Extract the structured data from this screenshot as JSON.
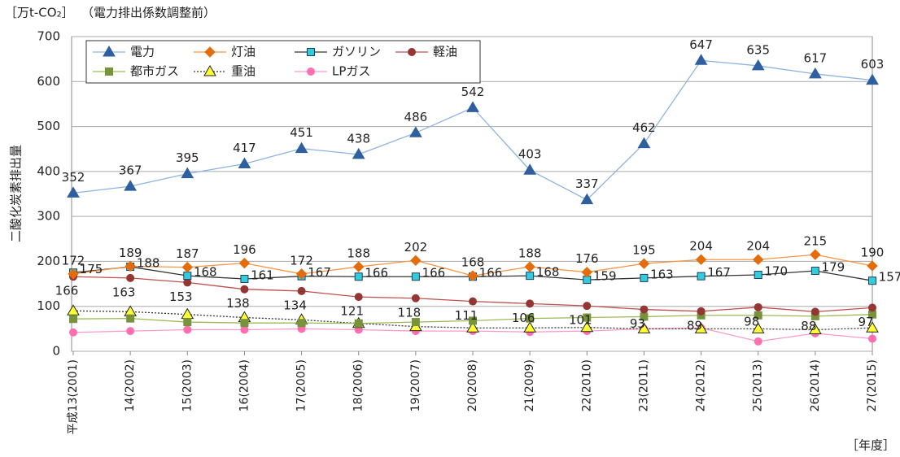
{
  "chart_data": {
    "type": "line",
    "unit_label": "［万t-CO₂］",
    "subtitle": "（電力排出係数調整前）",
    "y_label": "二酸化炭素排出量",
    "x_label": "［年度］",
    "categories": [
      "平成13(2001)",
      "14(2002)",
      "15(2003)",
      "16(2004)",
      "17(2005)",
      "18(2006)",
      "19(2007)",
      "20(2008)",
      "21(2009)",
      "22(2010)",
      "23(2011)",
      "24(2012)",
      "25(2013)",
      "26(2014)",
      "27(2015)"
    ],
    "ylim": [
      0,
      700
    ],
    "yticks": [
      0,
      100,
      200,
      300,
      400,
      500,
      600,
      700
    ],
    "grid": true,
    "series": [
      {
        "name": "電力",
        "color": "#8db3e2",
        "marker": "triangle",
        "marker_color": "#2f5f9e",
        "marker_stroke": "#2f5f9e",
        "label_color": "#1f497d",
        "values": [
          352,
          367,
          395,
          417,
          451,
          438,
          486,
          542,
          403,
          337,
          462,
          647,
          635,
          617,
          603
        ]
      },
      {
        "name": "灯油",
        "color": "#f79646",
        "marker": "diamond",
        "marker_color": "#e46c0a",
        "marker_stroke": "#e46c0a",
        "label_color": "#e46c0a",
        "values": [
          172,
          189,
          187,
          196,
          172,
          188,
          202,
          168,
          188,
          176,
          195,
          204,
          204,
          215,
          190
        ]
      },
      {
        "name": "ガソリン",
        "color": "#333333",
        "marker": "square",
        "marker_color": "#33ccdd",
        "marker_stroke": "#1f3f5f",
        "label_color": "#111111",
        "values": [
          175,
          188,
          168,
          161,
          167,
          166,
          166,
          166,
          168,
          159,
          163,
          167,
          170,
          179,
          157
        ]
      },
      {
        "name": "軽油",
        "color": "#c0504d",
        "marker": "circle",
        "marker_color": "#943634",
        "marker_stroke": "#943634",
        "label_color": "#943634",
        "values": [
          166,
          163,
          153,
          138,
          134,
          121,
          118,
          111,
          106,
          101,
          93,
          89,
          98,
          88,
          97
        ]
      },
      {
        "name": "都市ガス",
        "color": "#9bbb59",
        "marker": "square",
        "marker_color": "#77933c",
        "marker_stroke": "#77933c",
        "values": [
          72,
          73,
          65,
          63,
          63,
          62,
          65,
          68,
          73,
          75,
          77,
          80,
          80,
          78,
          82
        ]
      },
      {
        "name": "重油",
        "color": "#333333",
        "line_style": "dotted",
        "marker": "triangle",
        "marker_color": "#ffff33",
        "marker_stroke": "#222222",
        "values": [
          90,
          88,
          82,
          75,
          70,
          62,
          55,
          52,
          52,
          53,
          50,
          50,
          50,
          48,
          52
        ]
      },
      {
        "name": "LPガス",
        "color": "#ff99cc",
        "marker": "circle",
        "marker_color": "#ff6fb0",
        "marker_stroke": "#ff6fb0",
        "values": [
          42,
          45,
          48,
          48,
          50,
          48,
          45,
          45,
          43,
          45,
          50,
          52,
          22,
          40,
          28
        ]
      }
    ]
  }
}
